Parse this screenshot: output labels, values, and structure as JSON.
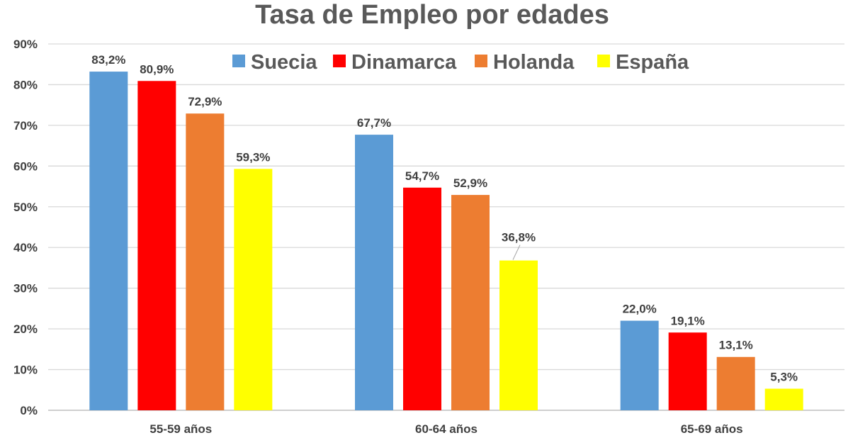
{
  "chart_data": {
    "type": "bar",
    "title": "Tasa de Empleo por edades",
    "categories": [
      "55-59 años",
      "60-64 años",
      "65-69 años"
    ],
    "series": [
      {
        "name": "Suecia",
        "color": "#5b9bd5",
        "values": [
          83.2,
          67.7,
          22.0
        ],
        "labels": [
          "83,2%",
          "67,7%",
          "22,0%"
        ]
      },
      {
        "name": "Dinamarca",
        "color": "#ff0000",
        "values": [
          80.9,
          54.7,
          19.1
        ],
        "labels": [
          "80,9%",
          "54,7%",
          "19,1%"
        ]
      },
      {
        "name": "Holanda",
        "color": "#ed7d31",
        "values": [
          72.9,
          52.9,
          13.1
        ],
        "labels": [
          "72,9%",
          "52,9%",
          "13,1%"
        ]
      },
      {
        "name": "España",
        "color": "#ffff00",
        "values": [
          59.3,
          36.8,
          5.3
        ],
        "labels": [
          "59,3%",
          "36,8%",
          "5,3%"
        ]
      }
    ],
    "ylim": [
      0,
      90
    ],
    "yticks": [
      "0%",
      "10%",
      "20%",
      "30%",
      "40%",
      "50%",
      "60%",
      "70%",
      "80%",
      "90%"
    ],
    "grid": true,
    "legend": "top"
  }
}
